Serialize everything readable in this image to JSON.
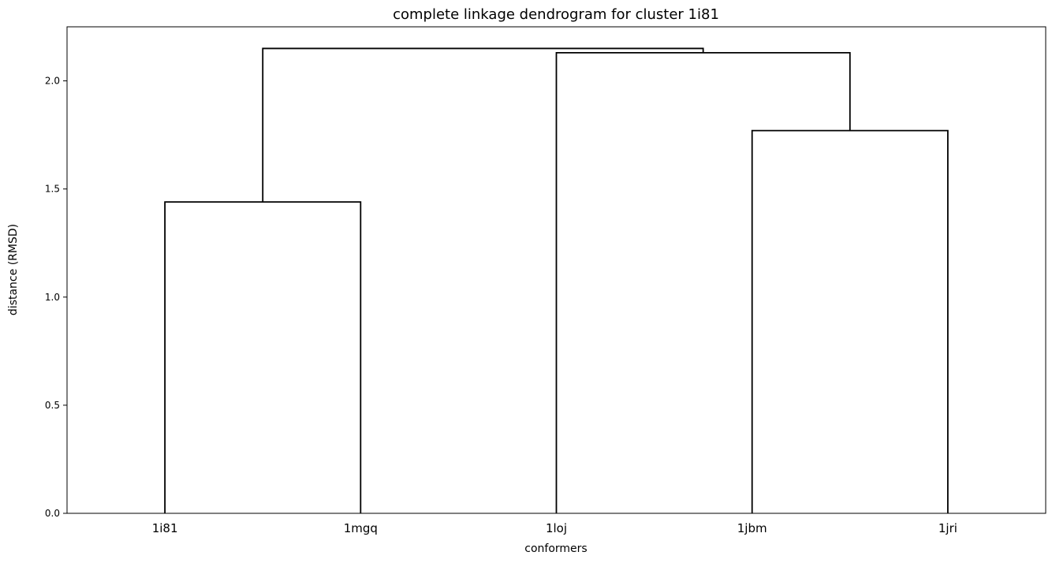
{
  "chart_data": {
    "type": "dendrogram",
    "title": "complete linkage dendrogram for cluster 1i81",
    "xlabel": "conformers",
    "ylabel": "distance (RMSD)",
    "leaves": [
      "1i81",
      "1mgq",
      "1loj",
      "1jbm",
      "1jri"
    ],
    "ylim": [
      0,
      2.25
    ],
    "yticks": [
      0.0,
      0.5,
      1.0,
      1.5,
      2.0
    ],
    "ytick_labels": [
      "0.0",
      "0.5",
      "1.0",
      "1.5",
      "2.0"
    ],
    "merges": [
      {
        "children": [
          "1i81",
          "1mgq"
        ],
        "height": 1.44
      },
      {
        "children": [
          "1jbm",
          "1jri"
        ],
        "height": 1.77
      },
      {
        "children": [
          "1loj",
          "1jbm+1jri"
        ],
        "height": 2.13
      },
      {
        "children": [
          "1i81+1mgq",
          "1loj+1jbm+1jri"
        ],
        "height": 2.15
      }
    ],
    "link_color": "#000000",
    "grid": false,
    "legend": "none"
  }
}
